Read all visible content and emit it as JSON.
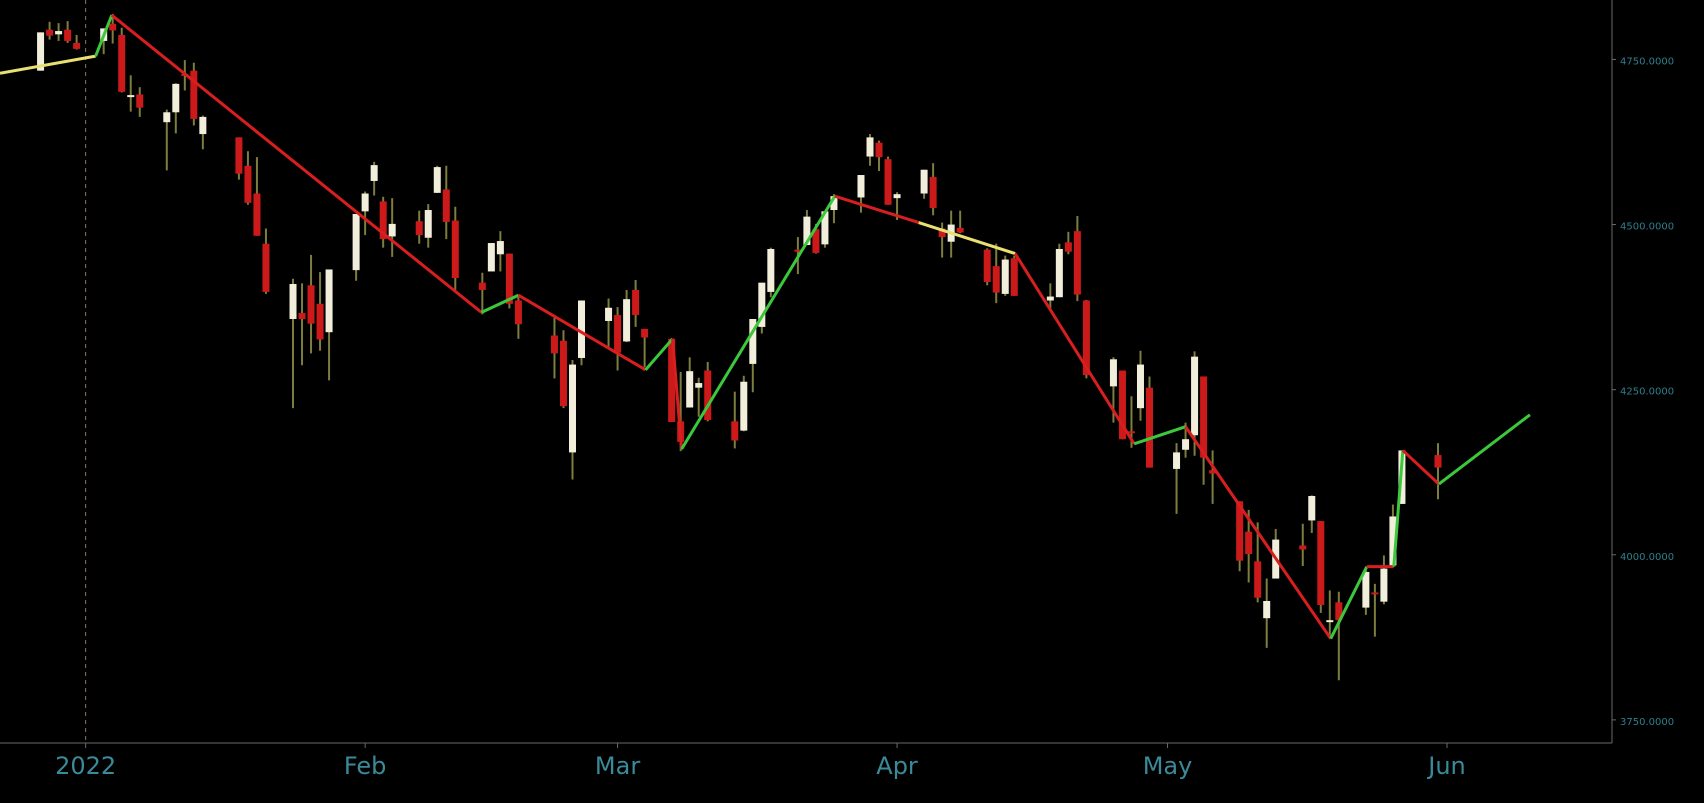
{
  "chart_data": {
    "type": "candlestick",
    "up_color": "#f2eedc",
    "down_color": "#cc1a1a",
    "wick_color": "#7d7d3e",
    "xlim": [
      -9.5,
      169.3
    ],
    "ylim": [
      3715,
      4840
    ],
    "xticks": [
      {
        "value": 0,
        "label": "2022"
      },
      {
        "value": 31,
        "label": "Feb"
      },
      {
        "value": 59,
        "label": "Mar"
      },
      {
        "value": 90,
        "label": "Apr"
      },
      {
        "value": 120,
        "label": "May"
      },
      {
        "value": 151,
        "label": "Jun"
      }
    ],
    "yticks": [
      {
        "value": 3750,
        "label": "3750.0000"
      },
      {
        "value": 4000,
        "label": "4000.0000"
      },
      {
        "value": 4250,
        "label": "4250.0000"
      },
      {
        "value": 4500,
        "label": "4500.0000"
      },
      {
        "value": 4750,
        "label": "4750.0000"
      }
    ],
    "x": [
      -5,
      -4,
      -3,
      -2,
      -1,
      2,
      3,
      4,
      5,
      6,
      9,
      10,
      11,
      12,
      13,
      17,
      18,
      19,
      20,
      23,
      24,
      25,
      26,
      27,
      30,
      31,
      32,
      33,
      34,
      37,
      38,
      39,
      40,
      41,
      44,
      45,
      46,
      47,
      48,
      52,
      53,
      54,
      55,
      58,
      59,
      60,
      61,
      62,
      65,
      66,
      67,
      68,
      69,
      72,
      73,
      74,
      75,
      76,
      79,
      80,
      81,
      82,
      83,
      86,
      87,
      88,
      89,
      90,
      93,
      94,
      95,
      96,
      97,
      100,
      101,
      102,
      103,
      107,
      108,
      109,
      110,
      111,
      114,
      115,
      116,
      117,
      118,
      121,
      122,
      123,
      124,
      125,
      128,
      129,
      130,
      131,
      132,
      135,
      136,
      137,
      138,
      139,
      142,
      143,
      144,
      145,
      146,
      150
    ],
    "open": [
      4733,
      4795,
      4788,
      4795,
      4775,
      4778,
      4804,
      4787,
      4693,
      4697,
      4655,
      4670,
      4728,
      4733,
      4637,
      4632,
      4589,
      4547,
      4471,
      4357,
      4366,
      4408,
      4380,
      4337,
      4431,
      4520,
      4566,
      4535,
      4482,
      4505,
      4480,
      4548,
      4553,
      4506,
      4412,
      4429,
      4455,
      4456,
      4385,
      4332,
      4324,
      4155,
      4298,
      4354,
      4363,
      4323,
      4401,
      4342,
      4327,
      4202,
      4223,
      4253,
      4279,
      4202,
      4188,
      4289,
      4345,
      4398,
      4462,
      4469,
      4493,
      4470,
      4522,
      4541,
      4603,
      4624,
      4599,
      4540,
      4547,
      4572,
      4494,
      4474,
      4495,
      4462,
      4437,
      4395,
      4449,
      4385,
      4390,
      4473,
      4490,
      4385,
      4255,
      4279,
      4187,
      4222,
      4253,
      4130,
      4159,
      4181,
      4270,
      4128,
      4081,
      4035,
      3990,
      3904,
      3964,
      4014,
      4052,
      4051,
      3900,
      3928,
      3920,
      3943,
      3929,
      3984,
      4077,
      4151
    ],
    "high": [
      4791,
      4807,
      4805,
      4808,
      4787,
      4797,
      4819,
      4798,
      4726,
      4708,
      4674,
      4714,
      4749,
      4745,
      4665,
      4632,
      4611,
      4602,
      4494,
      4418,
      4411,
      4454,
      4428,
      4432,
      4516,
      4550,
      4595,
      4542,
      4540,
      4521,
      4531,
      4589,
      4589,
      4527,
      4427,
      4472,
      4490,
      4456,
      4394,
      4362,
      4340,
      4295,
      4385,
      4388,
      4375,
      4401,
      4416,
      4342,
      4327,
      4277,
      4299,
      4268,
      4292,
      4247,
      4271,
      4357,
      4412,
      4465,
      4481,
      4522,
      4501,
      4520,
      4546,
      4575,
      4637,
      4627,
      4603,
      4549,
      4583,
      4593,
      4503,
      4521,
      4521,
      4464,
      4471,
      4453,
      4453,
      4411,
      4471,
      4489,
      4513,
      4386,
      4299,
      4279,
      4240,
      4309,
      4270,
      4169,
      4200,
      4308,
      4270,
      4158,
      4081,
      4068,
      4049,
      3964,
      4039,
      4047,
      4090,
      4051,
      3946,
      3944,
      3981,
      3956,
      3999,
      4076,
      4158,
      4169
    ],
    "low": [
      4733,
      4780,
      4778,
      4775,
      4765,
      4758,
      4774,
      4700,
      4671,
      4663,
      4582,
      4638,
      4703,
      4650,
      4614,
      4568,
      4530,
      4483,
      4395,
      4222,
      4287,
      4305,
      4309,
      4264,
      4415,
      4484,
      4544,
      4465,
      4451,
      4471,
      4465,
      4548,
      4478,
      4401,
      4364,
      4429,
      4429,
      4373,
      4327,
      4267,
      4222,
      4114,
      4287,
      4315,
      4279,
      4322,
      4345,
      4284,
      4201,
      4157,
      4223,
      4209,
      4202,
      4161,
      4187,
      4246,
      4335,
      4390,
      4425,
      4469,
      4456,
      4465,
      4502,
      4518,
      4589,
      4581,
      4530,
      4507,
      4539,
      4514,
      4450,
      4450,
      4487,
      4408,
      4381,
      4392,
      4392,
      4370,
      4390,
      4455,
      4384,
      4267,
      4200,
      4175,
      4162,
      4203,
      4132,
      4062,
      4147,
      4150,
      4106,
      4077,
      3975,
      3958,
      3928,
      3859,
      3964,
      3983,
      4033,
      3912,
      3877,
      3810,
      3909,
      3876,
      3925,
      3984,
      4077,
      4084
    ],
    "close": [
      4791,
      4786,
      4793,
      4778,
      4766,
      4797,
      4794,
      4701,
      4696,
      4677,
      4670,
      4713,
      4726,
      4660,
      4663,
      4577,
      4533,
      4483,
      4398,
      4410,
      4357,
      4350,
      4326,
      4432,
      4516,
      4547,
      4590,
      4478,
      4501,
      4484,
      4522,
      4587,
      4504,
      4419,
      4401,
      4472,
      4475,
      4380,
      4349,
      4305,
      4225,
      4288,
      4385,
      4374,
      4306,
      4387,
      4363,
      4329,
      4201,
      4171,
      4278,
      4260,
      4204,
      4173,
      4262,
      4357,
      4412,
      4463,
      4461,
      4512,
      4457,
      4520,
      4543,
      4575,
      4632,
      4602,
      4530,
      4546,
      4583,
      4525,
      4481,
      4500,
      4488,
      4413,
      4397,
      4447,
      4392,
      4391,
      4463,
      4459,
      4394,
      4272,
      4296,
      4175,
      4184,
      4288,
      4132,
      4155,
      4175,
      4300,
      4147,
      4123,
      3991,
      4001,
      3935,
      3930,
      4023,
      4008,
      4089,
      3924,
      3901,
      3901,
      3974,
      3941,
      3979,
      4058,
      4158,
      4132
    ],
    "lines": [
      {
        "color": "#e8e070",
        "x": [
          -9.5,
          1.1
        ],
        "values": [
          4729,
          4755
        ]
      },
      {
        "color": "#3cc83c",
        "x": [
          1.1,
          2.9
        ],
        "values": [
          4755,
          4817
        ]
      },
      {
        "color": "#d81e1e",
        "x": [
          2.9,
          43.9
        ],
        "values": [
          4817,
          4367
        ]
      },
      {
        "color": "#3cc83c",
        "x": [
          43.9,
          48
        ],
        "values": [
          4367,
          4393
        ]
      },
      {
        "color": "#d81e1e",
        "x": [
          48,
          62.1
        ],
        "values": [
          4393,
          4280
        ]
      },
      {
        "color": "#3cc83c",
        "x": [
          62.1,
          65.1
        ],
        "values": [
          4280,
          4327
        ]
      },
      {
        "color": "#d81e1e",
        "x": [
          65.1,
          66.1
        ],
        "values": [
          4327,
          4160
        ]
      },
      {
        "color": "#3cc83c",
        "x": [
          66.1,
          83.1
        ],
        "values": [
          4160,
          4543
        ]
      },
      {
        "color": "#d81e1e",
        "x": [
          83.1,
          92.4
        ],
        "values": [
          4543,
          4503
        ]
      },
      {
        "color": "#e8e070",
        "x": [
          92.4,
          103.1
        ],
        "values": [
          4503,
          4456
        ]
      },
      {
        "color": "#d81e1e",
        "x": [
          103.1,
          116.3
        ],
        "values": [
          4456,
          4168
        ]
      },
      {
        "color": "#3cc83c",
        "x": [
          116.3,
          122
        ],
        "values": [
          4168,
          4194
        ]
      },
      {
        "color": "#d81e1e",
        "x": [
          122,
          138.1
        ],
        "values": [
          4194,
          3873
        ]
      },
      {
        "color": "#3cc83c",
        "x": [
          138.1,
          142.1
        ],
        "values": [
          3873,
          3982
        ]
      },
      {
        "color": "#d81e1e",
        "x": [
          142.1,
          145.1
        ],
        "values": [
          3982,
          3982
        ]
      },
      {
        "color": "#3cc83c",
        "x": [
          145.1,
          146.1
        ],
        "values": [
          3982,
          4158
        ]
      },
      {
        "color": "#d81e1e",
        "x": [
          146.1,
          150.1
        ],
        "values": [
          4158,
          4107
        ]
      },
      {
        "color": "#3cc83c",
        "x": [
          150.1,
          160.2
        ],
        "values": [
          4107,
          4212
        ]
      }
    ]
  }
}
